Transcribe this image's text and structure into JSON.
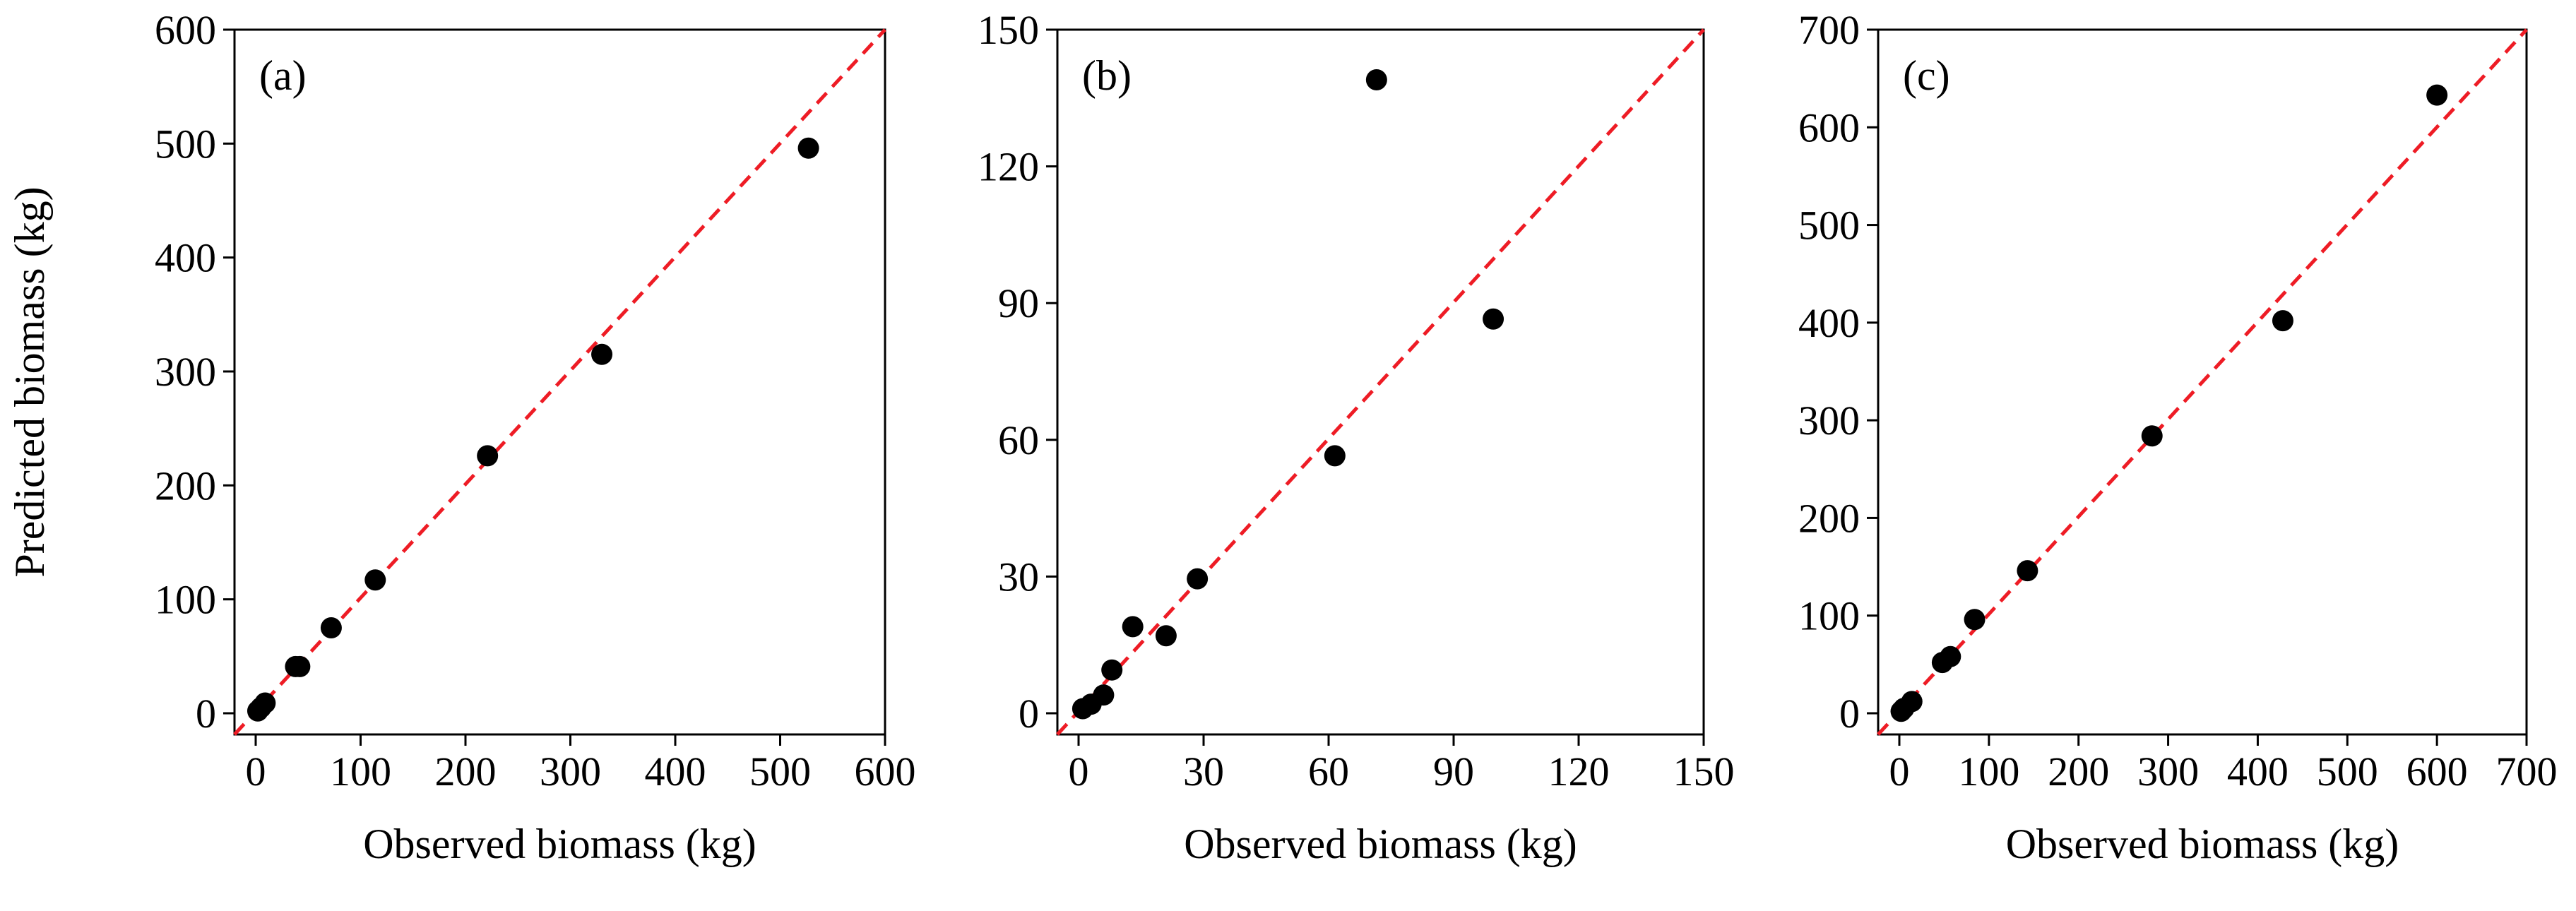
{
  "colors": {
    "points": "#000000",
    "reference_line": "#ee1c25",
    "axes": "#000000"
  },
  "ylabel": "Predicted biomass (kg)",
  "chart_data": [
    {
      "type": "scatter",
      "panel_label": "(a)",
      "xlabel": "Observed biomass (kg)",
      "ylabel": "Predicted biomass (kg)",
      "xlim": [
        0,
        600
      ],
      "ylim": [
        0,
        600
      ],
      "xticks": [
        0,
        100,
        200,
        300,
        400,
        500,
        600
      ],
      "yticks": [
        0,
        100,
        200,
        300,
        400,
        500,
        600
      ],
      "reference_line": "1:1",
      "points": [
        {
          "x": 2,
          "y": 2
        },
        {
          "x": 5,
          "y": 5
        },
        {
          "x": 9,
          "y": 9
        },
        {
          "x": 38,
          "y": 41
        },
        {
          "x": 42,
          "y": 41
        },
        {
          "x": 72,
          "y": 75
        },
        {
          "x": 114,
          "y": 117
        },
        {
          "x": 221,
          "y": 226
        },
        {
          "x": 330,
          "y": 315
        },
        {
          "x": 527,
          "y": 496
        }
      ]
    },
    {
      "type": "scatter",
      "panel_label": "(b)",
      "xlabel": "Observed biomass (kg)",
      "ylabel": "",
      "xlim": [
        0,
        150
      ],
      "ylim": [
        0,
        150
      ],
      "xticks": [
        0,
        30,
        60,
        90,
        120,
        150
      ],
      "yticks": [
        0,
        30,
        60,
        90,
        120,
        150
      ],
      "reference_line": "1:1",
      "points": [
        {
          "x": 1,
          "y": 1
        },
        {
          "x": 3,
          "y": 2
        },
        {
          "x": 6,
          "y": 4
        },
        {
          "x": 8,
          "y": 9.5
        },
        {
          "x": 13,
          "y": 19
        },
        {
          "x": 21,
          "y": 17
        },
        {
          "x": 28.5,
          "y": 29.5
        },
        {
          "x": 61.5,
          "y": 56.5
        },
        {
          "x": 71.5,
          "y": 139
        },
        {
          "x": 99.5,
          "y": 86.5
        }
      ]
    },
    {
      "type": "scatter",
      "panel_label": "(c)",
      "xlabel": "Observed biomass (kg)",
      "ylabel": "",
      "xlim": [
        0,
        700
      ],
      "ylim": [
        0,
        700
      ],
      "xticks": [
        0,
        100,
        200,
        300,
        400,
        500,
        600,
        700
      ],
      "yticks": [
        0,
        100,
        200,
        300,
        400,
        500,
        600,
        700
      ],
      "reference_line": "1:1",
      "points": [
        {
          "x": 2,
          "y": 2
        },
        {
          "x": 5,
          "y": 5
        },
        {
          "x": 14,
          "y": 12
        },
        {
          "x": 48,
          "y": 52
        },
        {
          "x": 57,
          "y": 58
        },
        {
          "x": 84,
          "y": 96
        },
        {
          "x": 143,
          "y": 146
        },
        {
          "x": 282,
          "y": 284
        },
        {
          "x": 428,
          "y": 402
        },
        {
          "x": 600,
          "y": 633
        }
      ]
    }
  ]
}
